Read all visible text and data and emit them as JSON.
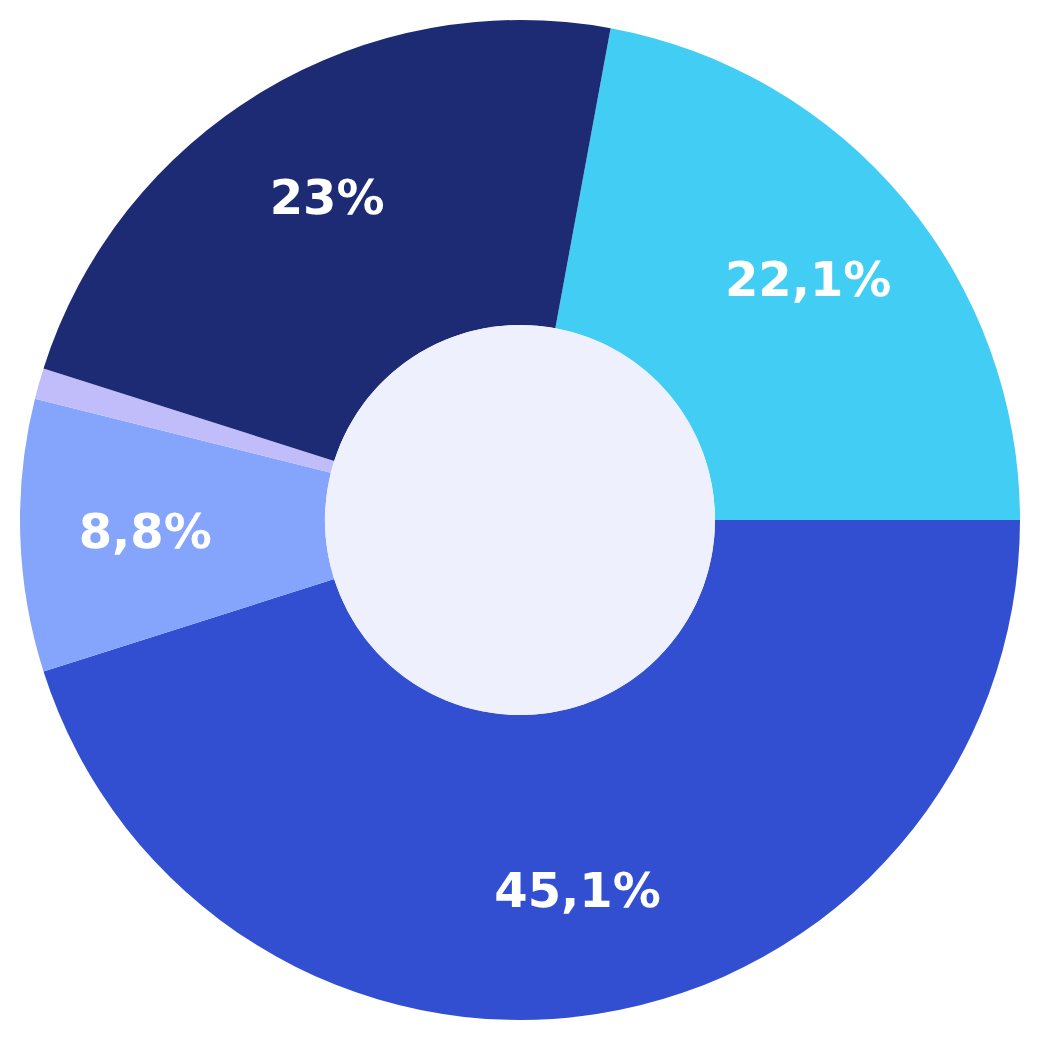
{
  "chart_data": {
    "type": "donut",
    "categories": [
      null,
      null,
      null,
      null,
      null
    ],
    "values": [
      22.1,
      45.1,
      8.8,
      1.0,
      23
    ],
    "colors": [
      "#42cdf5",
      "#324fd1",
      "#84a5fb",
      "#c0bdfa",
      "#1d2a74"
    ],
    "value_labels": [
      "22,1%",
      "45,1%",
      "8,8%",
      null,
      "23%"
    ]
  }
}
